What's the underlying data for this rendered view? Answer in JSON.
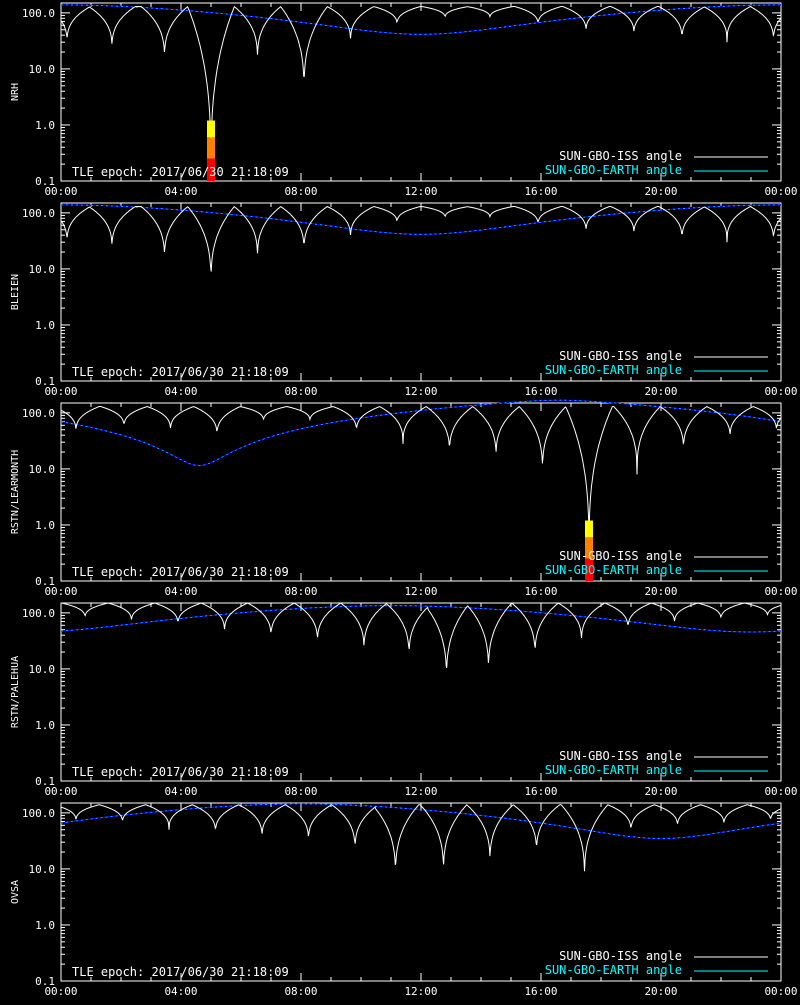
{
  "chart_data": [
    {
      "type": "line",
      "ylabel": "NRH",
      "yscale": "log",
      "ylim": [
        0.1,
        150
      ],
      "xlim_hours": [
        0,
        24
      ],
      "y_ticks": [
        "0.1",
        "1.0",
        "10.0",
        "100.0"
      ],
      "x_ticks": [
        "00:00",
        "04:00",
        "08:00",
        "12:00",
        "16:00",
        "20:00",
        "00:00"
      ],
      "epoch_label": "TLE epoch: 2017/06/30 21:18:09",
      "legend": [
        "SUN-GBO-ISS angle",
        "SUN-GBO-EARTH angle"
      ],
      "earth_curve": {
        "a": 0.8,
        "phase": 12.0,
        "d": 0.75
      },
      "iss_dips": [
        {
          "t": 0.2,
          "min": 28
        },
        {
          "t": 1.7,
          "min": 22
        },
        {
          "t": 3.45,
          "min": 14
        },
        {
          "t": 5.0,
          "min": 0.13
        },
        {
          "t": 6.55,
          "min": 14
        },
        {
          "t": 8.1,
          "min": 3.5
        },
        {
          "t": 9.65,
          "min": 30
        },
        {
          "t": 11.2,
          "min": 60
        },
        {
          "t": 12.8,
          "min": 80
        },
        {
          "t": 14.3,
          "min": 80
        },
        {
          "t": 15.9,
          "min": 60
        },
        {
          "t": 17.5,
          "min": 45
        },
        {
          "t": 19.1,
          "min": 40
        },
        {
          "t": 20.7,
          "min": 32
        },
        {
          "t": 22.2,
          "min": 30
        },
        {
          "t": 23.75,
          "min": 30
        }
      ],
      "iss_peak": 130,
      "markers": [
        {
          "t": 5.0
        }
      ]
    },
    {
      "type": "line",
      "ylabel": "BLEIEN",
      "yscale": "log",
      "ylim": [
        0.1,
        150
      ],
      "xlim_hours": [
        0,
        24
      ],
      "y_ticks": [
        "0.1",
        "1.0",
        "10.0",
        "100.0"
      ],
      "x_ticks": [
        "00:00",
        "04:00",
        "08:00",
        "12:00",
        "16:00",
        "20:00",
        "00:00"
      ],
      "epoch_label": "TLE epoch: 2017/06/30 21:18:09",
      "legend": [
        "SUN-GBO-ISS angle",
        "SUN-GBO-EARTH angle"
      ],
      "earth_curve": {
        "a": 0.8,
        "phase": 12.0,
        "d": 0.75
      },
      "iss_dips": [
        {
          "t": 0.2,
          "min": 28
        },
        {
          "t": 1.7,
          "min": 22
        },
        {
          "t": 3.45,
          "min": 14
        },
        {
          "t": 5.0,
          "min": 5
        },
        {
          "t": 6.55,
          "min": 15
        },
        {
          "t": 8.1,
          "min": 20
        },
        {
          "t": 9.65,
          "min": 35
        },
        {
          "t": 11.2,
          "min": 65
        },
        {
          "t": 12.8,
          "min": 80
        },
        {
          "t": 14.3,
          "min": 80
        },
        {
          "t": 15.9,
          "min": 60
        },
        {
          "t": 17.5,
          "min": 45
        },
        {
          "t": 19.1,
          "min": 40
        },
        {
          "t": 20.7,
          "min": 32
        },
        {
          "t": 22.2,
          "min": 30
        },
        {
          "t": 23.75,
          "min": 30
        }
      ],
      "iss_peak": 130,
      "markers": []
    },
    {
      "type": "line",
      "ylabel": "RSTN/LEARMONTH",
      "yscale": "log",
      "ylim": [
        0.1,
        150
      ],
      "xlim_hours": [
        0,
        24
      ],
      "y_ticks": [
        "0.1",
        "1.0",
        "10.0",
        "100.0"
      ],
      "x_ticks": [
        "00:00",
        "04:00",
        "08:00",
        "12:00",
        "16:00",
        "20:00",
        "00:00"
      ],
      "epoch_label": "TLE epoch: 2017/06/30 21:18:09",
      "legend": [
        "SUN-GBO-ISS angle",
        "SUN-GBO-EARTH angle"
      ],
      "earth_curve": {
        "a": 1.0,
        "phase": 4.6,
        "d": 0.98
      },
      "iss_dips": [
        {
          "t": 0.5,
          "min": 45
        },
        {
          "t": 2.1,
          "min": 55
        },
        {
          "t": 3.65,
          "min": 48
        },
        {
          "t": 5.2,
          "min": 38
        },
        {
          "t": 6.75,
          "min": 70
        },
        {
          "t": 8.3,
          "min": 70
        },
        {
          "t": 9.85,
          "min": 45
        },
        {
          "t": 11.4,
          "min": 28
        },
        {
          "t": 12.95,
          "min": 18
        },
        {
          "t": 14.5,
          "min": 15
        },
        {
          "t": 16.05,
          "min": 8
        },
        {
          "t": 17.6,
          "min": 0.3
        },
        {
          "t": 19.2,
          "min": 8
        },
        {
          "t": 20.75,
          "min": 20
        },
        {
          "t": 22.3,
          "min": 35
        },
        {
          "t": 23.85,
          "min": 45
        }
      ],
      "iss_peak": 130,
      "markers": [
        {
          "t": 17.6
        }
      ]
    },
    {
      "type": "line",
      "ylabel": "RSTN/PALEHUA",
      "yscale": "log",
      "ylim": [
        0.1,
        150
      ],
      "xlim_hours": [
        0,
        24
      ],
      "y_ticks": [
        "0.1",
        "1.0",
        "10.0",
        "100.0"
      ],
      "x_ticks": [
        "00:00",
        "04:00",
        "08:00",
        "12:00",
        "16:00",
        "20:00",
        "00:00"
      ],
      "epoch_label": "TLE epoch: 2017/06/30 21:18:09",
      "legend": [
        "SUN-GBO-ISS angle",
        "SUN-GBO-EARTH angle"
      ],
      "earth_curve": {
        "a": 0.75,
        "phase": 23.0,
        "d": 0.7
      },
      "iss_dips": [
        {
          "t": 0.8,
          "min": 80
        },
        {
          "t": 2.35,
          "min": 70
        },
        {
          "t": 3.9,
          "min": 60
        },
        {
          "t": 5.45,
          "min": 45
        },
        {
          "t": 7.0,
          "min": 35
        },
        {
          "t": 8.55,
          "min": 28
        },
        {
          "t": 10.1,
          "min": 20
        },
        {
          "t": 11.6,
          "min": 15
        },
        {
          "t": 12.85,
          "min": 5.5
        },
        {
          "t": 14.25,
          "min": 8
        },
        {
          "t": 15.8,
          "min": 16
        },
        {
          "t": 17.35,
          "min": 30
        },
        {
          "t": 18.9,
          "min": 50
        },
        {
          "t": 20.45,
          "min": 65
        },
        {
          "t": 22.0,
          "min": 75
        },
        {
          "t": 23.55,
          "min": 85
        }
      ],
      "iss_peak": 150,
      "markers": []
    },
    {
      "type": "line",
      "ylabel": "OVSA",
      "yscale": "log",
      "ylim": [
        0.1,
        150
      ],
      "xlim_hours": [
        0,
        24
      ],
      "y_ticks": [
        "0.1",
        "1.0",
        "10.0",
        "100.0"
      ],
      "x_ticks": [
        "00:00",
        "04:00",
        "08:00",
        "12:00",
        "16:00",
        "20:00",
        "00:00"
      ],
      "epoch_label": "TLE epoch: 2017/06/30 21:18:09",
      "legend": [
        "SUN-GBO-ISS angle",
        "SUN-GBO-EARTH angle"
      ],
      "earth_curve": {
        "a": 0.85,
        "phase": 20.0,
        "d": 0.82
      },
      "iss_dips": [
        {
          "t": 0.5,
          "min": 70
        },
        {
          "t": 2.05,
          "min": 65
        },
        {
          "t": 3.6,
          "min": 50
        },
        {
          "t": 5.15,
          "min": 42
        },
        {
          "t": 6.7,
          "min": 35
        },
        {
          "t": 8.25,
          "min": 30
        },
        {
          "t": 9.8,
          "min": 20
        },
        {
          "t": 11.15,
          "min": 6.5
        },
        {
          "t": 12.75,
          "min": 7.5
        },
        {
          "t": 14.3,
          "min": 12
        },
        {
          "t": 15.85,
          "min": 18
        },
        {
          "t": 17.45,
          "min": 6.5
        },
        {
          "t": 19.0,
          "min": 45
        },
        {
          "t": 20.55,
          "min": 55
        },
        {
          "t": 22.1,
          "min": 60
        },
        {
          "t": 23.65,
          "min": 70
        }
      ],
      "iss_peak": 140,
      "markers": []
    }
  ],
  "colors": {
    "background": "#000000",
    "axis": "#ffffff",
    "iss_line": "#ffffff",
    "earth_line": "#00ffff",
    "earth_line_dark": "#0000ff",
    "marker_high": "#ffff00",
    "marker_mid": "#ff8000",
    "marker_low": "#ff0000"
  }
}
